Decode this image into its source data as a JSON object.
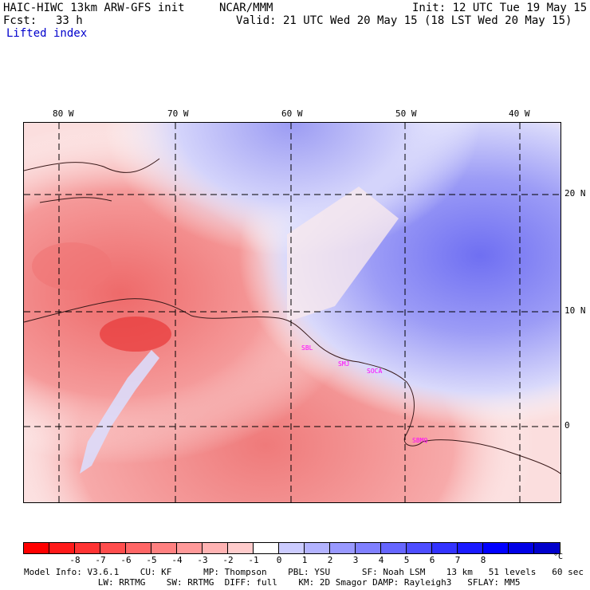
{
  "header": {
    "model_title": "HAIC-HIWC 13km ARW-GFS init",
    "org": "NCAR/MMM",
    "init": "Init: 12 UTC Tue 19 May 15",
    "fcst_label": "Fcst:",
    "fcst_value": "33 h",
    "valid": "Valid: 21 UTC Wed 20 May 15 (18 LST Wed 20 May 15)",
    "field": "Lifted index"
  },
  "map": {
    "lon_labels": [
      "80 W",
      "70 W",
      "60 W",
      "50 W",
      "40 W"
    ],
    "lat_labels": [
      "20 N",
      "10 N",
      "0"
    ],
    "stations": [
      "SBL",
      "SMJ",
      "SOCA",
      "SBMQ"
    ]
  },
  "colorbar": {
    "unit": "°C",
    "labels": [
      "-8",
      "-7",
      "-6",
      "-5",
      "-4",
      "-3",
      "-2",
      "-1",
      "0",
      "1",
      "2",
      "3",
      "4",
      "5",
      "6",
      "7",
      "8"
    ],
    "colors": [
      "#ff0000",
      "#ff1a1a",
      "#ff3333",
      "#ff4d4d",
      "#ff6666",
      "#ff8080",
      "#ff9999",
      "#ffb3b3",
      "#ffcccc",
      "#ffffff",
      "#ccccff",
      "#b3b3ff",
      "#9999ff",
      "#8080ff",
      "#6666ff",
      "#4d4dff",
      "#3333ff",
      "#1a1aff",
      "#0000ff",
      "#0000e6",
      "#0000cc"
    ]
  },
  "footer": {
    "line1": "Model Info: V3.6.1    CU: KF      MP: Thompson    PBL: YSU      SF: Noah LSM    13 km   51 levels   60 sec",
    "line2": "              LW: RRTMG    SW: RRTMG  DIFF: full    KM: 2D Smagor DAMP: Rayleigh3   SFLAY: MM5"
  }
}
